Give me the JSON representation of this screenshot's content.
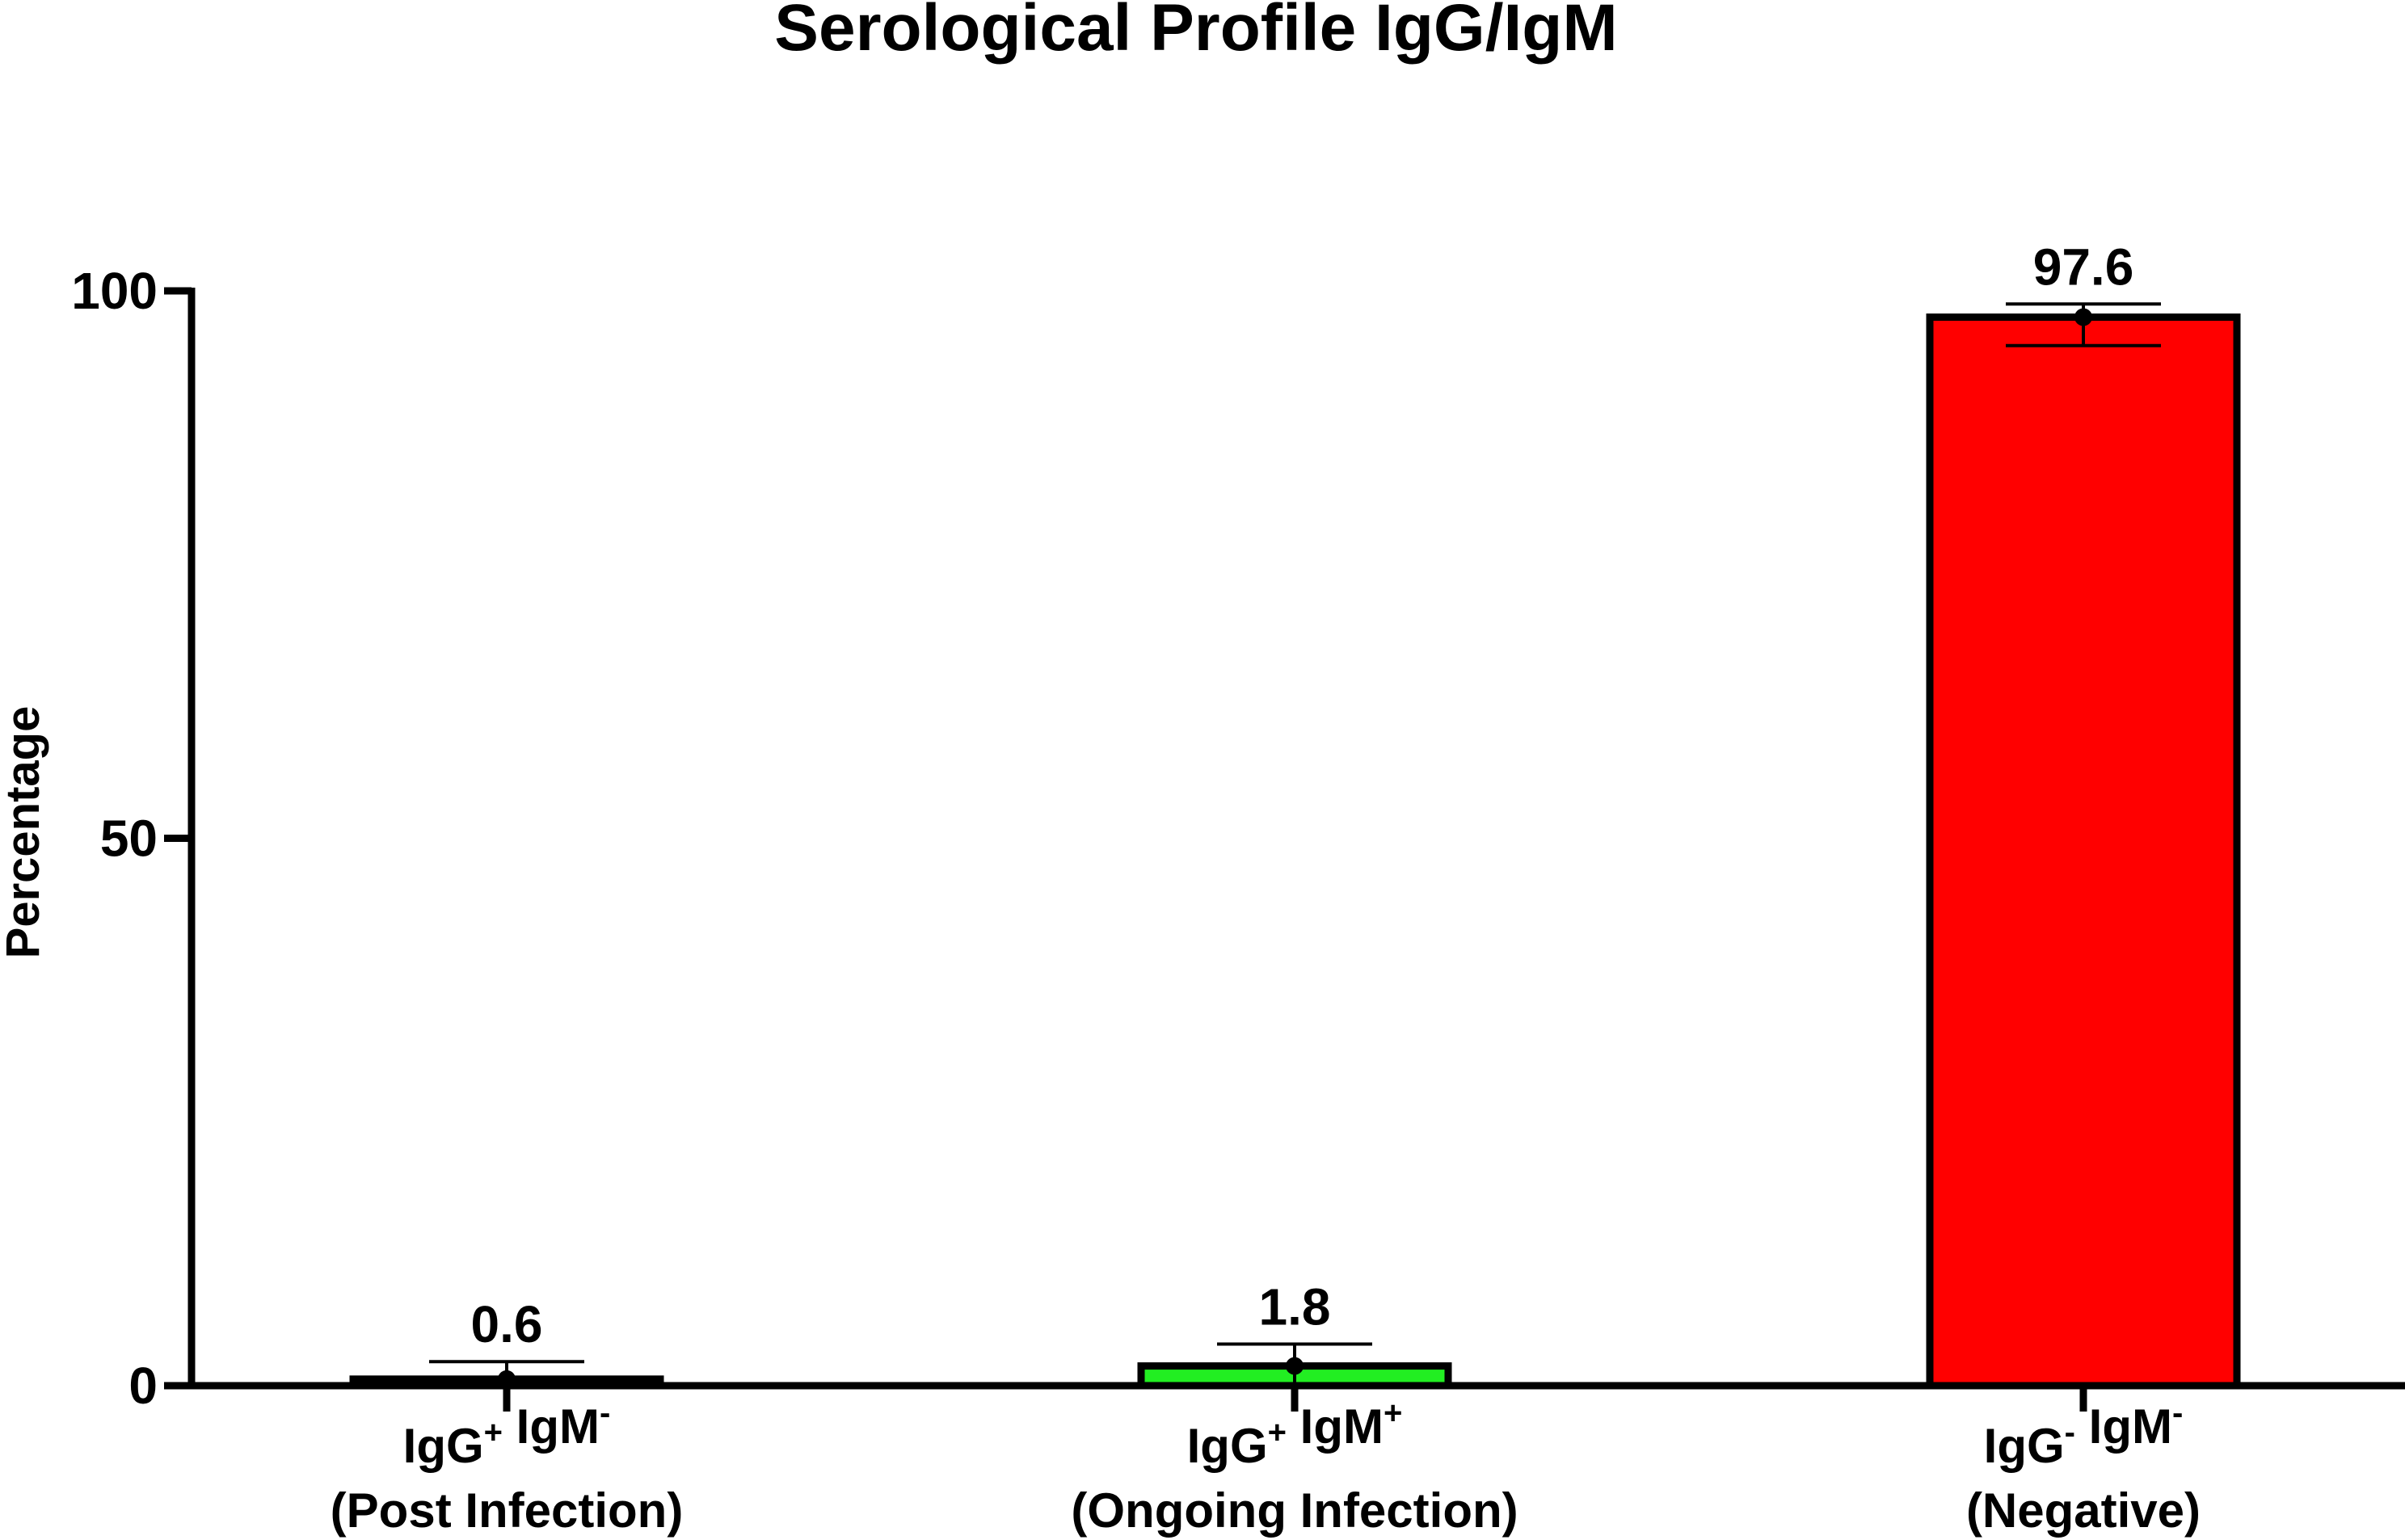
{
  "chart_data": {
    "type": "bar",
    "title": "Serological Profile IgG/IgM",
    "xlabel": "",
    "ylabel": "Percentage",
    "ylim": [
      0,
      100
    ],
    "yticks": [
      0,
      50,
      100
    ],
    "ytick_labels": [
      "0",
      "50",
      "100"
    ],
    "categories": [
      {
        "line1_parts": [
          {
            "text": "IgG",
            "sup": false
          },
          {
            "text": "+",
            "sup": true
          },
          {
            "text": " IgM",
            "sup": false
          },
          {
            "text": "-",
            "sup": true
          }
        ],
        "line2": "(Post Infection)"
      },
      {
        "line1_parts": [
          {
            "text": "IgG",
            "sup": false
          },
          {
            "text": "+",
            "sup": true
          },
          {
            "text": " IgM",
            "sup": false
          },
          {
            "text": "+",
            "sup": true
          }
        ],
        "line2": "(Ongoing Infection)"
      },
      {
        "line1_parts": [
          {
            "text": "IgG",
            "sup": false
          },
          {
            "text": "-",
            "sup": true
          },
          {
            "text": " IgM",
            "sup": false
          },
          {
            "text": "-",
            "sup": true
          }
        ],
        "line2": "(Negative)"
      }
    ],
    "values": [
      0.6,
      1.8,
      97.6
    ],
    "value_labels": [
      "0.6",
      "1.8",
      "97.6"
    ],
    "error_bars": [
      {
        "upper": 2.2,
        "lower": 0
      },
      {
        "upper": 3.8,
        "lower": 0
      },
      {
        "upper": 98.8,
        "lower": 95.0
      }
    ],
    "colors": [
      "#ff0000",
      "#22ee22",
      "#ff0000"
    ],
    "axis_color": "#000000"
  }
}
